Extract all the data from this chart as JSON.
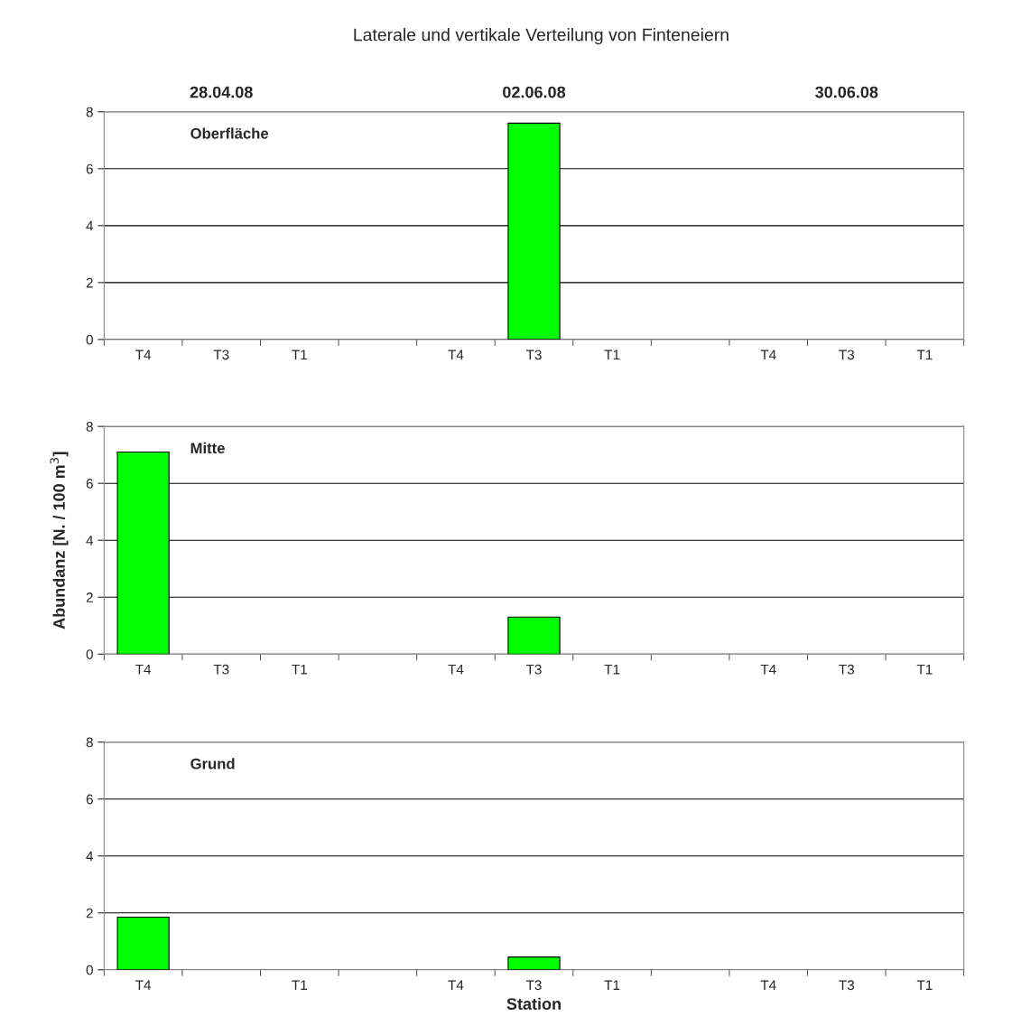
{
  "chart_data": [
    {
      "type": "bar",
      "title": "Laterale und vertikale Verteilung von Finteneiern",
      "subtitle": "Oberfläche",
      "annotations": [
        "28.04.08",
        "02.06.08",
        "30.06.08"
      ],
      "categories": [
        "T4",
        "T3",
        "T1",
        null,
        "T4",
        "T3",
        "T1",
        null,
        "T4",
        "T3",
        "T1"
      ],
      "values": [
        0,
        0,
        0,
        null,
        0,
        7.6,
        0,
        null,
        0,
        0,
        0
      ],
      "color": "#00ff00",
      "ylim": [
        0,
        8
      ],
      "yticks": [
        0,
        2,
        4,
        6,
        8
      ],
      "grid": "y"
    },
    {
      "type": "bar",
      "subtitle": "Mitte",
      "ylabel": "Abundanz [N. / 100 m$^{3}$]",
      "categories": [
        "T4",
        "T3",
        "T1",
        null,
        "T4",
        "T3",
        "T1",
        null,
        "T4",
        "T3",
        "T1"
      ],
      "values": [
        7.1,
        0,
        0,
        null,
        0,
        1.3,
        0,
        null,
        0,
        0,
        0
      ],
      "color": "#00ff00",
      "ylim": [
        0,
        8
      ],
      "yticks": [
        0,
        2,
        4,
        6,
        8
      ],
      "grid": "y"
    },
    {
      "type": "bar",
      "subtitle": "Grund",
      "xlabel": "Station",
      "categories": [
        "T4",
        null,
        "T1",
        null,
        "T4",
        "T3",
        "T1",
        null,
        "T4",
        "T3",
        "T1"
      ],
      "values": [
        1.85,
        0,
        0,
        null,
        0,
        0.45,
        0,
        null,
        0,
        0,
        0
      ],
      "color": "#00ff00",
      "ylim": [
        0,
        8
      ],
      "yticks": [
        0,
        2,
        4,
        6,
        8
      ],
      "grid": "y"
    }
  ]
}
